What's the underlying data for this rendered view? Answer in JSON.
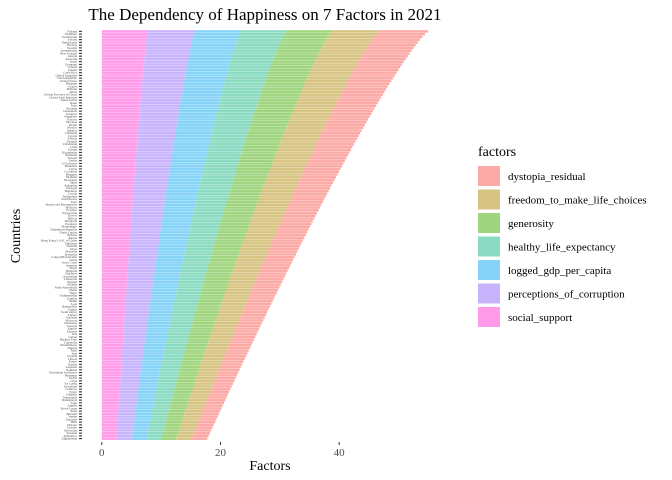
{
  "chart_data": {
    "type": "bar",
    "orientation": "horizontal",
    "stacked": true,
    "title": "The Dependency of Happiness on 7 Factors in 2021",
    "xlabel": "Factors",
    "ylabel": "Countries",
    "xlim": [
      -3,
      57
    ],
    "x_ticks": [
      0,
      20,
      40
    ],
    "legend_title": "factors",
    "legend_position": "right",
    "grid": false,
    "countries": [
      "Finland",
      "Denmark",
      "Switzerland",
      "Iceland",
      "Netherlands",
      "Norway",
      "Sweden",
      "Luxembourg",
      "New Zealand",
      "Austria",
      "Australia",
      "Israel",
      "Germany",
      "Canada",
      "Ireland",
      "Costa Rica",
      "United Kingdom",
      "Czech Republic",
      "United States",
      "Belgium",
      "France",
      "Bahrain",
      "Malta",
      "Taiwan Province of China",
      "United Arab Emirates",
      "Saudi Arabia",
      "Spain",
      "Italy",
      "Slovenia",
      "Guatemala",
      "Uruguay",
      "Singapore",
      "Kosovo",
      "Slovakia",
      "Brazil",
      "Mexico",
      "Jamaica",
      "Lithuania",
      "Cyprus",
      "Estonia",
      "Panama",
      "Uzbekistan",
      "Chile",
      "Poland",
      "Kazakhstan",
      "Romania",
      "Kuwait",
      "Serbia",
      "El Salvador",
      "Mauritius",
      "Latvia",
      "Colombia",
      "Hungary",
      "Thailand",
      "Nicaragua",
      "Japan",
      "Argentina",
      "Portugal",
      "Honduras",
      "Croatia",
      "Philippines",
      "South Korea",
      "Peru",
      "Bosnia and Herzegovina",
      "Moldova",
      "Ecuador",
      "Kyrgyzstan",
      "Greece",
      "Bolivia",
      "Mongolia",
      "Paraguay",
      "Montenegro",
      "Dominican Republic",
      "North Cyprus",
      "Belarus",
      "Russia",
      "Hong Kong S.A.R. of China",
      "Tajikistan",
      "Vietnam",
      "Libya",
      "Malaysia",
      "Indonesia",
      "Congo (Brazzaville)",
      "China",
      "Ivory Coast",
      "Armenia",
      "Nepal",
      "Bulgaria",
      "Maldives",
      "Azerbaijan",
      "Cameroon",
      "Senegal",
      "Albania",
      "North Macedonia",
      "Ghana",
      "Niger",
      "Turkmenistan",
      "Gambia",
      "Benin",
      "Laos",
      "Bangladesh",
      "Guinea",
      "South Africa",
      "Turkey",
      "Pakistan",
      "Morocco",
      "Venezuela",
      "Georgia",
      "Algeria",
      "Ukraine",
      "Iraq",
      "Gabon",
      "Burkina Faso",
      "Cambodia",
      "Mozambique",
      "Nigeria",
      "Mali",
      "Iran",
      "Uganda",
      "Liberia",
      "Kenya",
      "Tunisia",
      "Lebanon",
      "Namibia",
      "Palestinian Territories",
      "Myanmar",
      "Jordan",
      "Chad",
      "Sri Lanka",
      "Swaziland",
      "Comoros",
      "Egypt",
      "Ethiopia",
      "Mauritania",
      "Madagascar",
      "Togo",
      "Zambia",
      "Sierra Leone",
      "India",
      "Burundi",
      "Yemen",
      "Tanzania",
      "Haiti",
      "Malawi",
      "Lesotho",
      "Botswana",
      "Rwanda",
      "Zimbabwe",
      "Afghanistan"
    ],
    "total_start": 55.0,
    "total_end": 17.8,
    "shares": {
      "social_support": 0.14,
      "perceptions_of_corruption": 0.145,
      "logged_gdp_per_capita": 0.14,
      "healthy_life_expectancy": 0.14,
      "generosity": 0.14,
      "freedom_to_make_life_choices": 0.145,
      "dystopia_residual": 0.15
    },
    "series": [
      {
        "name": "social_support",
        "color": "#ff9be9"
      },
      {
        "name": "perceptions_of_corruption",
        "color": "#c8b4fd"
      },
      {
        "name": "logged_gdp_per_capita",
        "color": "#86d3f8"
      },
      {
        "name": "healthy_life_expectancy",
        "color": "#8adbc1"
      },
      {
        "name": "generosity",
        "color": "#a0d57f"
      },
      {
        "name": "freedom_to_make_life_choices",
        "color": "#d7c483"
      },
      {
        "name": "dystopia_residual",
        "color": "#fcaaa6"
      }
    ],
    "legend_order": [
      "dystopia_residual",
      "freedom_to_make_life_choices",
      "generosity",
      "healthy_life_expectancy",
      "logged_gdp_per_capita",
      "perceptions_of_corruption",
      "social_support"
    ]
  }
}
